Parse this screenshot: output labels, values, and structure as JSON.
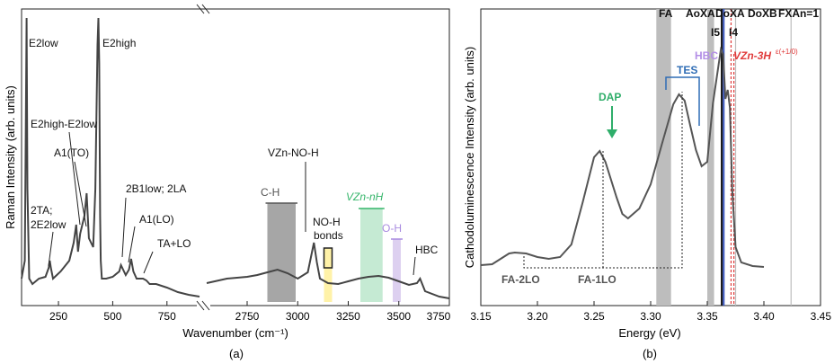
{
  "chart_data": [
    {
      "panel": "(a)",
      "type": "line",
      "ylabel": "Raman Intensity (arb. units)",
      "xlabel": "Wavenumber (cm⁻¹)",
      "caption": "(a)",
      "xlim_left": [
        80,
        900
      ],
      "xlim_right": [
        2550,
        3750
      ],
      "ticks_left": [
        "250",
        "500",
        "750"
      ],
      "ticks_left_values": [
        250,
        500,
        750
      ],
      "ticks_right": [
        "2750",
        "3000",
        "3250",
        "3500",
        "3750"
      ],
      "ticks_right_values": [
        2750,
        3000,
        3250,
        3500,
        3750
      ],
      "series_left": {
        "x": [
          80,
          95,
          100,
          103,
          107,
          115,
          130,
          160,
          190,
          205,
          210,
          215,
          225,
          260,
          300,
          320,
          332,
          340,
          350,
          370,
          380,
          390,
          400,
          410,
          420,
          430,
          434,
          438,
          442,
          445,
          450,
          470,
          500,
          530,
          538,
          548,
          560,
          575,
          585,
          595,
          610,
          640,
          655,
          670,
          700,
          750,
          800,
          850,
          900
        ],
        "y": [
          300,
          280,
          120,
          10,
          200,
          300,
          306,
          300,
          298,
          288,
          280,
          288,
          300,
          292,
          280,
          260,
          240,
          270,
          250,
          230,
          205,
          255,
          260,
          265,
          200,
          40,
          10,
          60,
          230,
          280,
          300,
          300,
          298,
          292,
          285,
          290,
          296,
          290,
          278,
          292,
          300,
          300,
          302,
          306,
          306,
          310,
          315,
          318,
          320
        ]
      },
      "series_right": {
        "x": [
          2550,
          2650,
          2750,
          2800,
          2850,
          2900,
          2950,
          3000,
          3050,
          3080,
          3095,
          3110,
          3150,
          3200,
          3250,
          3300,
          3350,
          3400,
          3450,
          3500,
          3550,
          3590,
          3605,
          3630,
          3700,
          3750
        ],
        "y": [
          305,
          300,
          298,
          296,
          293,
          290,
          294,
          300,
          293,
          260,
          282,
          300,
          305,
          306,
          303,
          300,
          298,
          297,
          299,
          303,
          307,
          305,
          300,
          314,
          320,
          322
        ]
      },
      "bands": [
        {
          "label": "C-H",
          "range": [
            2850,
            2990
          ],
          "color": "#a6a6a6"
        },
        {
          "label": "NO-H bonds",
          "range": [
            3130,
            3170
          ],
          "color": "#fff2a8"
        },
        {
          "label": "VZn-nH",
          "range": [
            3310,
            3420
          ],
          "color": "#c5ead3"
        },
        {
          "label": "O-H",
          "range": [
            3470,
            3510
          ],
          "color": "#ddd0f0"
        }
      ],
      "annotations": {
        "e2low": "E2low",
        "e2high": "E2high",
        "diff": "E2high-E2low",
        "a1to": "A1(TO)",
        "twoTA": "2TA;",
        "twoE2low": "2E2low",
        "twoB1": "2B1low; 2LA",
        "a1lo": "A1(LO)",
        "taLo": "TA+LO",
        "vznNoH": "VZn-NO-H",
        "ch": "C-H",
        "noh": "NO-H",
        "bonds": "bonds",
        "vznnh": "VZn-nH",
        "oh": "O-H",
        "hbc": "HBC"
      }
    },
    {
      "panel": "(b)",
      "type": "line",
      "ylabel": "Cathodoluminescence Intensity (arb. units)",
      "xlabel": "Energy (eV)",
      "caption": "(b)",
      "xlim": [
        3.15,
        3.45
      ],
      "ticks": [
        "3.15",
        "3.20",
        "3.25",
        "3.30",
        "3.35",
        "3.40",
        "3.45"
      ],
      "ticks_values": [
        3.15,
        3.2,
        3.25,
        3.3,
        3.35,
        3.4,
        3.45
      ],
      "series": {
        "x": [
          3.15,
          3.16,
          3.17,
          3.175,
          3.18,
          3.19,
          3.2,
          3.21,
          3.22,
          3.23,
          3.24,
          3.25,
          3.255,
          3.26,
          3.27,
          3.275,
          3.28,
          3.29,
          3.3,
          3.31,
          3.32,
          3.325,
          3.33,
          3.335,
          3.34,
          3.345,
          3.35,
          3.355,
          3.36,
          3.362,
          3.364,
          3.366,
          3.368,
          3.37,
          3.372,
          3.375,
          3.38,
          3.39,
          3.4
        ],
        "y": [
          285,
          284,
          276,
          272,
          271,
          272,
          276,
          278,
          276,
          262,
          215,
          165,
          158,
          170,
          210,
          228,
          233,
          222,
          195,
          150,
          106,
          95,
          102,
          130,
          157,
          175,
          170,
          105,
          62,
          45,
          50,
          100,
          90,
          110,
          200,
          265,
          282,
          286,
          287
        ]
      },
      "bands": [
        {
          "label": "FA",
          "range": [
            3.305,
            3.318
          ]
        },
        {
          "label": "I5",
          "range": [
            3.35,
            3.356
          ]
        }
      ],
      "lines": [
        {
          "label": "AoXA",
          "x": 3.3628,
          "color": "#7a7a7a"
        },
        {
          "label": "I4",
          "x": 3.3628,
          "color": "#111111"
        },
        {
          "label": "DoXA",
          "x": 3.3645,
          "color": "#3a56c0"
        },
        {
          "label": "DoXB",
          "x": 3.371,
          "color": "#e03a3a"
        },
        {
          "label": "FXA n=1",
          "x": 3.375,
          "color": "#bdbdbd"
        },
        {
          "label": "",
          "x": 3.424,
          "color": "#bdbdbd"
        }
      ],
      "top_labels": {
        "fa": "FA",
        "axa": "AoXA",
        "dxa": "DoXA",
        "dxb": "DoXB",
        "fxa": "FXAn=1"
      },
      "annotations": {
        "i5": "I5",
        "i4": "I4",
        "hbc": "HBC",
        "vzn3h": "VZn-3H",
        "vzn3h_sup": "ε(+1/0)",
        "tes": "TES",
        "dap": "DAP",
        "fa2lo": "FA-2LO",
        "fa1lo": "FA-1LO"
      },
      "colors": {
        "tes": "#2f6db5",
        "dap": "#2fae6a",
        "hbc": "#b38ee6",
        "vzn3h": "#e03a3a"
      }
    }
  ]
}
